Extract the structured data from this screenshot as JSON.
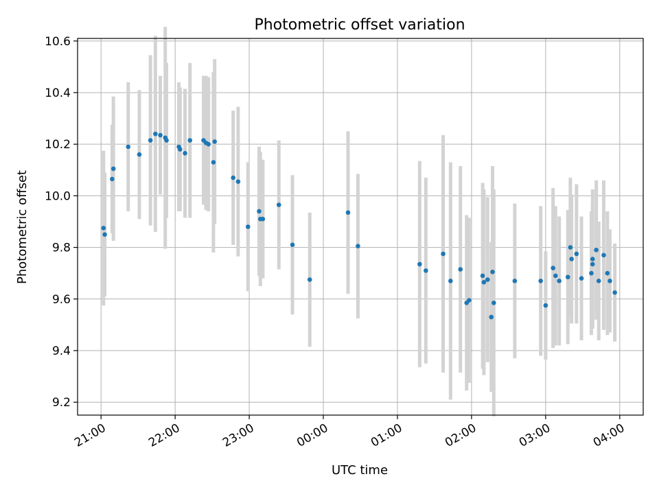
{
  "chart_data": {
    "type": "scatter",
    "title": "Photometric offset variation",
    "xlabel": "UTC time",
    "ylabel": "Photometric offset",
    "xlim": [
      "20:41",
      "04:19"
    ],
    "ylim": [
      9.15,
      10.61
    ],
    "grid": true,
    "x_ticks": [
      "21:00",
      "22:00",
      "23:00",
      "00:00",
      "01:00",
      "02:00",
      "03:00",
      "04:00"
    ],
    "y_ticks": [
      9.2,
      9.4,
      9.6,
      9.8,
      10.0,
      10.2,
      10.4,
      10.6
    ],
    "y_tick_labels": [
      "9.2",
      "9.4",
      "9.6",
      "9.8",
      "10.0",
      "10.2",
      "10.4",
      "10.6"
    ],
    "colors": {
      "points": "#1f77b4",
      "error_bars": "#d3d3d3",
      "grid": "#b0b0b0"
    },
    "series": [
      {
        "x": [
          "21:02",
          "21:03",
          "21:09",
          "21:10",
          "21:22",
          "21:31",
          "21:40",
          "21:44",
          "21:48",
          "21:52",
          "21:53",
          "22:03",
          "22:04",
          "22:08",
          "22:12",
          "22:23",
          "22:25",
          "22:27",
          "22:31",
          "22:32",
          "22:47",
          "22:51",
          "22:59",
          "23:08",
          "23:09",
          "23:11",
          "23:24",
          "23:35",
          "23:49",
          "00:20",
          "00:28",
          "01:18",
          "01:23",
          "01:37",
          "01:43",
          "01:51",
          "01:56",
          "01:58",
          "02:09",
          "02:10",
          "02:13",
          "02:16",
          "02:17",
          "02:18",
          "02:35",
          "02:56",
          "03:00",
          "03:06",
          "03:08",
          "03:11",
          "03:18",
          "03:20",
          "03:21",
          "03:25",
          "03:29",
          "03:37",
          "03:38",
          "03:38",
          "03:41",
          "03:43",
          "03:47",
          "03:50",
          "03:52",
          "03:56"
        ],
        "y": [
          9.875,
          9.85,
          10.065,
          10.105,
          10.19,
          10.16,
          10.215,
          10.24,
          10.235,
          10.225,
          10.215,
          10.19,
          10.18,
          10.165,
          10.215,
          10.215,
          10.205,
          10.2,
          10.13,
          10.21,
          10.07,
          10.055,
          9.88,
          9.94,
          9.91,
          9.91,
          9.965,
          9.81,
          9.675,
          9.935,
          9.805,
          9.735,
          9.71,
          9.775,
          9.67,
          9.715,
          9.585,
          9.595,
          9.69,
          9.665,
          9.675,
          9.53,
          9.705,
          9.585,
          9.67,
          9.67,
          9.575,
          9.72,
          9.69,
          9.67,
          9.685,
          9.8,
          9.755,
          9.775,
          9.68,
          9.7,
          9.755,
          9.735,
          9.79,
          9.67,
          9.77,
          9.7,
          9.67,
          9.625
        ],
        "yerr": [
          0.3,
          0.24,
          0.21,
          0.28,
          0.25,
          0.25,
          0.33,
          0.38,
          0.23,
          0.43,
          0.3,
          0.25,
          0.24,
          0.25,
          0.3,
          0.25,
          0.26,
          0.26,
          0.35,
          0.32,
          0.26,
          0.29,
          0.25,
          0.25,
          0.26,
          0.23,
          0.25,
          0.27,
          0.26,
          0.315,
          0.28,
          0.4,
          0.36,
          0.46,
          0.46,
          0.4,
          0.34,
          0.32,
          0.36,
          0.36,
          0.32,
          0.29,
          0.41,
          0.44,
          0.3,
          0.29,
          0.21,
          0.31,
          0.27,
          0.25,
          0.26,
          0.27,
          0.25,
          0.27,
          0.24,
          0.24,
          0.27,
          0.23,
          0.27,
          0.23,
          0.29,
          0.24,
          0.2,
          0.19
        ]
      }
    ]
  }
}
